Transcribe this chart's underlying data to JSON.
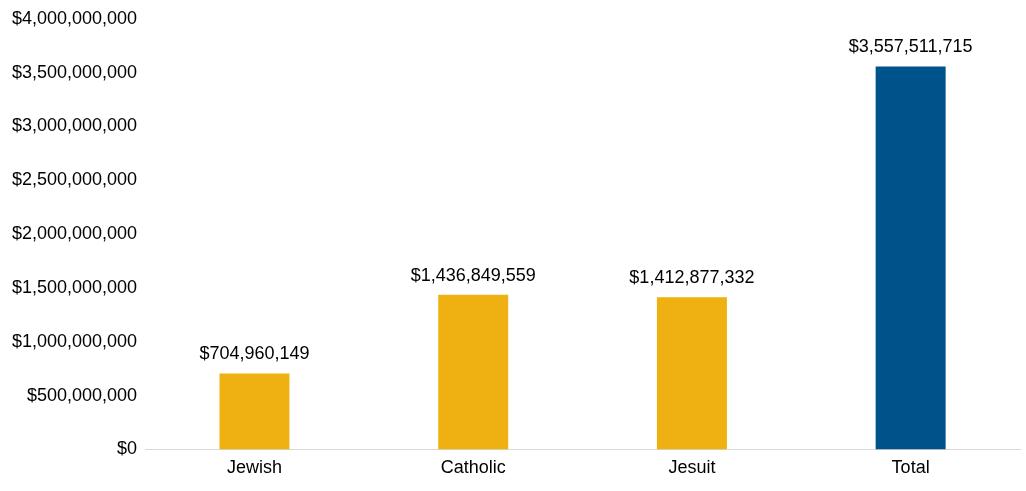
{
  "chart_data": {
    "type": "bar",
    "categories": [
      "Jewish",
      "Catholic",
      "Jesuit",
      "Total"
    ],
    "values": [
      704960149,
      1436849559,
      1412877332,
      3557511715
    ],
    "colors": [
      "#eeb111",
      "#eeb111",
      "#eeb111",
      "#00538a"
    ],
    "value_labels": [
      "$704,960,149",
      "$1,436,849,559",
      "$1,412,877,332",
      "$3,557,511,715"
    ],
    "ylim": [
      0,
      4000000000
    ],
    "yticks": [
      {
        "value": 0,
        "label": "$0"
      },
      {
        "value": 500000000,
        "label": "$500,000,000"
      },
      {
        "value": 1000000000,
        "label": "$1,000,000,000"
      },
      {
        "value": 1500000000,
        "label": "$1,500,000,000"
      },
      {
        "value": 2000000000,
        "label": "$2,000,000,000"
      },
      {
        "value": 2500000000,
        "label": "$2,500,000,000"
      },
      {
        "value": 3000000000,
        "label": "$3,000,000,000"
      },
      {
        "value": 3500000000,
        "label": "$3,500,000,000"
      },
      {
        "value": 4000000000,
        "label": "$4,000,000,000"
      }
    ],
    "grid": false,
    "legend": false
  }
}
